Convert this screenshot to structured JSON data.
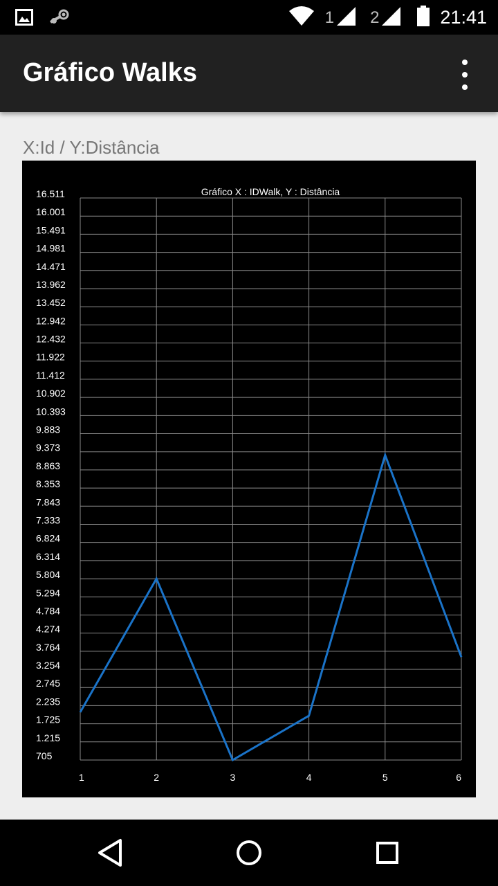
{
  "status_bar": {
    "time": "21:41",
    "sim1_label": "1",
    "sim2_label": "2",
    "icons": [
      "image-icon",
      "steam-icon",
      "wifi-icon",
      "signal-icon",
      "battery-icon"
    ]
  },
  "app_bar": {
    "title": "Gráfico Walks",
    "overflow_icon": "more-vert-icon"
  },
  "caption": "X:Id / Y:Distância",
  "colors": {
    "app_bar": "#212121",
    "line": "#1a73c8",
    "chart_bg": "#000000",
    "grid": "#8a8a8a"
  },
  "chart_data": {
    "type": "line",
    "title": "Gráfico X : IDWalk, Y : Distância",
    "xlabel": "",
    "ylabel": "",
    "x": [
      1,
      2,
      3,
      4,
      5,
      6
    ],
    "x_tick_labels": [
      "1",
      "2",
      "3",
      "4",
      "5",
      "6"
    ],
    "ylim": [
      705,
      16511
    ],
    "y_tick_labels": [
      "16.511",
      "16.001",
      "15.491",
      "14.981",
      "14.471",
      "13.962",
      "13.452",
      "12.942",
      "12.432",
      "11.922",
      "11.412",
      "10.902",
      "10.393",
      "9.883",
      "9.373",
      "8.863",
      "8.353",
      "7.843",
      "7.333",
      "6.824",
      "6.314",
      "5.804",
      "5.294",
      "4.784",
      "4.274",
      "3.764",
      "3.254",
      "2.745",
      "2.235",
      "1.725",
      "1.215",
      "705"
    ],
    "series": [
      {
        "values": [
          2050,
          5804,
          705,
          1950,
          9280,
          3600
        ]
      }
    ],
    "grid": true,
    "legend": "none"
  },
  "nav_bar": {
    "icons": [
      "back-icon",
      "home-icon",
      "recents-icon"
    ]
  }
}
